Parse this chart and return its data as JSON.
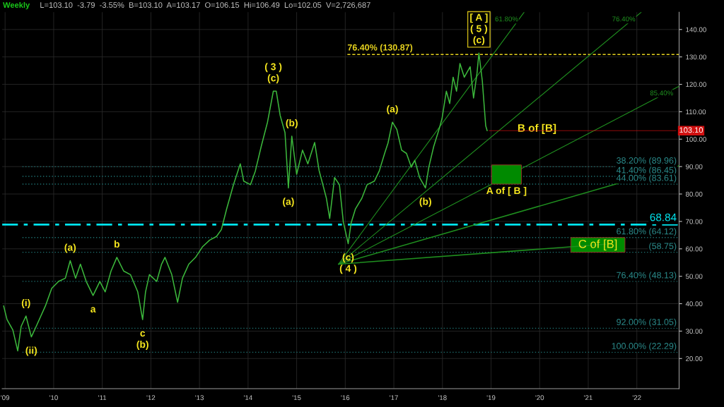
{
  "chart_data": {
    "type": "line",
    "title": "Weekly",
    "subtitle": "L=103.10  -3.79  -3.55%  B=103.10  A=103.17  O=106.15  Hi=106.49  Lo=102.05  V=2,726,687",
    "xlim": [
      2008.94,
      2022.87
    ],
    "ylim": [
      9,
      146.3
    ],
    "xticks": [
      {
        "value": 2009,
        "label": "'09"
      },
      {
        "value": 2010,
        "label": "'10"
      },
      {
        "value": 2011,
        "label": "'11"
      },
      {
        "value": 2012,
        "label": "'12"
      },
      {
        "value": 2013,
        "label": "'13"
      },
      {
        "value": 2014,
        "label": "'14"
      },
      {
        "value": 2015,
        "label": "'15"
      },
      {
        "value": 2016,
        "label": "'16"
      },
      {
        "value": 2017,
        "label": "'17"
      },
      {
        "value": 2018,
        "label": "'18"
      },
      {
        "value": 2019,
        "label": "'19"
      },
      {
        "value": 2020,
        "label": "'20"
      },
      {
        "value": 2021,
        "label": "'21"
      },
      {
        "value": 2022,
        "label": "'22"
      }
    ],
    "yticks": [
      {
        "value": 20,
        "label": "20.00"
      },
      {
        "value": 30,
        "label": "30.00"
      },
      {
        "value": 40,
        "label": "40.00"
      },
      {
        "value": 50,
        "label": "50.00"
      },
      {
        "value": 60,
        "label": "60.00"
      },
      {
        "value": 70,
        "label": "70.00"
      },
      {
        "value": 80,
        "label": "80.00"
      },
      {
        "value": 90,
        "label": "90.00"
      },
      {
        "value": 100,
        "label": "100.00"
      },
      {
        "value": 110,
        "label": "110.00"
      },
      {
        "value": 120,
        "label": "120.00"
      },
      {
        "value": 130,
        "label": "130.00"
      },
      {
        "value": 140,
        "label": "140.00"
      }
    ],
    "grid": true,
    "series": [
      {
        "color": "#3cb83c",
        "x": [
          2008.97,
          2009.04,
          2009.16,
          2009.26,
          2009.33,
          2009.43,
          2009.54,
          2009.64,
          2009.83,
          2009.96,
          2010.1,
          2010.24,
          2010.34,
          2010.45,
          2010.55,
          2010.67,
          2010.81,
          2010.95,
          2011.06,
          2011.18,
          2011.3,
          2011.44,
          2011.58,
          2011.73,
          2011.83,
          2011.89,
          2011.97,
          2012.12,
          2012.22,
          2012.29,
          2012.43,
          2012.55,
          2012.65,
          2012.78,
          2012.92,
          2013.06,
          2013.21,
          2013.35,
          2013.45,
          2013.56,
          2013.7,
          2013.84,
          2013.91,
          2014.05,
          2014.15,
          2014.27,
          2014.4,
          2014.52,
          2014.58,
          2014.66,
          2014.76,
          2014.83,
          2014.9,
          2015.0,
          2015.12,
          2015.23,
          2015.37,
          2015.46,
          2015.61,
          2015.68,
          2015.78,
          2015.88,
          2015.96,
          2016.06,
          2016.12,
          2016.21,
          2016.34,
          2016.45,
          2016.6,
          2016.7,
          2016.81,
          2016.88,
          2016.97,
          2017.06,
          2017.16,
          2017.26,
          2017.36,
          2017.43,
          2017.53,
          2017.65,
          2017.72,
          2017.82,
          2017.93,
          2017.99,
          2018.08,
          2018.15,
          2018.22,
          2018.29,
          2018.36,
          2018.45,
          2018.57,
          2018.64,
          2018.71,
          2018.75,
          2018.82,
          2018.89,
          2018.92
        ],
        "values": [
          39.2,
          34.2,
          30.4,
          22.8,
          31.7,
          35.5,
          27.9,
          31.7,
          39.2,
          45.6,
          48.1,
          49.3,
          55.7,
          49.3,
          54.4,
          48.1,
          43.0,
          48.1,
          44.3,
          51.9,
          56.9,
          51.9,
          50.6,
          44.3,
          34.2,
          44.3,
          50.6,
          48.1,
          54.4,
          56.9,
          50.6,
          40.5,
          49.3,
          54.4,
          56.9,
          60.7,
          63.2,
          64.5,
          67.0,
          74.6,
          83.4,
          91.0,
          84.7,
          83.4,
          88.4,
          97.3,
          106.2,
          117.5,
          117.5,
          108.7,
          102.4,
          82.2,
          101.1,
          87.2,
          96.0,
          91.0,
          98.8,
          88.7,
          78.6,
          71.1,
          86.0,
          83.4,
          69.8,
          61.9,
          69.4,
          74.6,
          78.4,
          83.4,
          84.7,
          88.4,
          94.8,
          98.6,
          106.2,
          103.6,
          96.0,
          94.8,
          89.8,
          92.3,
          86.0,
          82.2,
          89.8,
          97.3,
          103.6,
          107.4,
          117.5,
          113.0,
          122.6,
          117.5,
          127.6,
          122.6,
          126.4,
          115.0,
          123.9,
          131.4,
          121.3,
          104.9,
          103.1
        ]
      },
      {
        "name": "61.80%",
        "color": "#1f8f1f",
        "x": [
          2015.86,
          2019.68
        ],
        "values": [
          54.4,
          146.3
        ]
      },
      {
        "name": "76.40%",
        "color": "#1f8f1f",
        "x": [
          2015.86,
          2022.09
        ],
        "values": [
          54.4,
          146.3
        ]
      },
      {
        "name": "85.40%",
        "color": "#1f8f1f",
        "x": [
          2015.86,
          2022.87
        ],
        "values": [
          54.4,
          119.3
        ]
      },
      {
        "color": "#1f8f1f",
        "x": [
          2015.86,
          2022.87
        ],
        "values": [
          54.4,
          90.3
        ]
      },
      {
        "color": "#1f8f1f",
        "x": [
          2015.86,
          2021.36
        ],
        "values": [
          54.4,
          61.7
        ]
      }
    ],
    "ref_lines": [
      {
        "axis": "y",
        "value": 130.87,
        "label": "76.40% (130.87)",
        "color": "#e6d21e",
        "line_style": "dashed"
      },
      {
        "axis": "y",
        "value": 89.96,
        "label": "38.20% (89.96)",
        "color": "#1e7070",
        "line_style": "dotted"
      },
      {
        "axis": "y",
        "value": 86.45,
        "label": "41.40% (86.45)",
        "color": "#1e7070",
        "line_style": "dotted"
      },
      {
        "axis": "y",
        "value": 83.61,
        "label": "44.00% (83.61)",
        "color": "#1e7070",
        "line_style": "dotted"
      },
      {
        "axis": "y",
        "value": 68.84,
        "label": "68.84",
        "color": "#00e5ee",
        "line_style": "dashdot"
      },
      {
        "axis": "y",
        "value": 64.12,
        "label": "61.80% (64.12)",
        "color": "#1e7070",
        "line_style": "dotted"
      },
      {
        "axis": "y",
        "value": 58.75,
        "label": "(58.75)",
        "color": "#1e7070",
        "line_style": "dotted"
      },
      {
        "axis": "y",
        "value": 48.13,
        "label": "76.40% (48.13)",
        "color": "#1e7070",
        "line_style": "dotted"
      },
      {
        "axis": "y",
        "value": 31.05,
        "label": "92.00% (31.05)",
        "color": "#1e7070",
        "line_style": "dotted"
      },
      {
        "axis": "y",
        "value": 22.29,
        "label": "100.00% (22.29)",
        "color": "#1e7070",
        "line_style": "dotted"
      }
    ],
    "bands": [
      {
        "axis": "y",
        "from": 83.61,
        "to": 90.6,
        "label": "A of [ B ]",
        "color": "#008a00"
      },
      {
        "axis": "y",
        "from": 58.75,
        "to": 64.12,
        "label": "C of [B]",
        "color": "#008a00"
      }
    ],
    "annotations": [
      {
        "text": "(i)",
        "x": 2009.43,
        "y": 35.5
      },
      {
        "text": "(ii)",
        "x": 2009.54,
        "y": 27.9
      },
      {
        "text": "(a)",
        "x": 2010.34,
        "y": 55.7
      },
      {
        "text": "a",
        "x": 2010.81,
        "y": 43.0
      },
      {
        "text": "b",
        "x": 2011.3,
        "y": 56.9
      },
      {
        "text": "c\n(b)",
        "x": 2011.83,
        "y": 34.2
      },
      {
        "text": "( 3 )\n(c)",
        "x": 2014.52,
        "y": 117.5
      },
      {
        "text": "(b)",
        "x": 2014.9,
        "y": 101.1
      },
      {
        "text": "(a)",
        "x": 2014.83,
        "y": 82.2
      },
      {
        "text": "(c)\n( 4 )",
        "x": 2016.06,
        "y": 61.9
      },
      {
        "text": "(a)",
        "x": 2016.97,
        "y": 106.2
      },
      {
        "text": "(b)",
        "x": 2017.65,
        "y": 82.2
      },
      {
        "text": "[ A ]\n( 5 )\n(c)",
        "x": 2018.75,
        "y": 131.4
      },
      "B of [B]",
      {
        "text": "103.10",
        "x": 2018.92,
        "y": 103.1
      }
    ]
  }
}
